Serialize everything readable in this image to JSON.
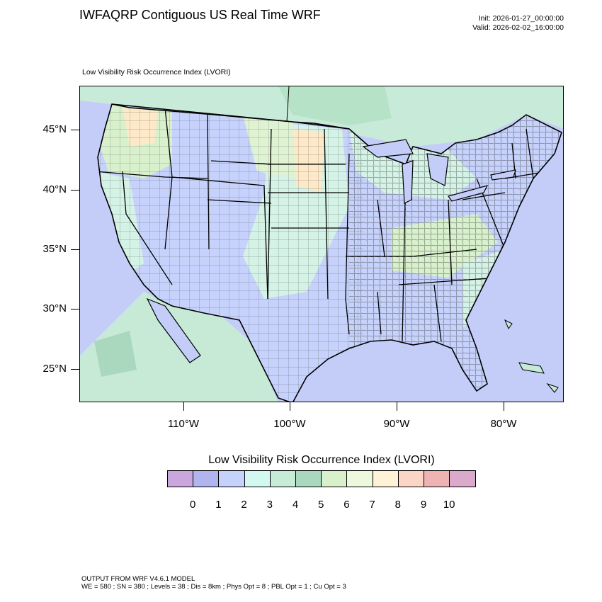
{
  "header": {
    "title": "IWFAQRP Contiguous US Real Time WRF",
    "init": "Init: 2026-01-27_00:00:00",
    "valid": "Valid: 2026-02-02_16:00:00"
  },
  "map": {
    "subtitle": "Low Visibility Risk Occurrence Index   (LVORI)",
    "lat_labels": [
      "45°N",
      "40°N",
      "35°N",
      "30°N",
      "25°N"
    ],
    "lon_labels": [
      "110°W",
      "100°W",
      "90°W",
      "80°W"
    ],
    "ocean_color": "#c4cdf8",
    "colors": {
      "low_blue": "#c6d2fb",
      "mid_teal": "#d4f2e5",
      "green": "#b8e6cf",
      "light_green": "#dff3d2",
      "warm": "#fde9c8",
      "red": "#f2b2ad"
    }
  },
  "colorbar": {
    "title": "Low Visibility Risk Occurrence Index  (LVORI)",
    "labels": [
      "0",
      "1",
      "2",
      "3",
      "4",
      "5",
      "6",
      "7",
      "8",
      "9",
      "10"
    ],
    "colors": [
      "#c9a6dc",
      "#b0b5ef",
      "#c5d3fc",
      "#d3f8f1",
      "#c6ecd8",
      "#a9d8be",
      "#d8f0cc",
      "#eef8dc",
      "#fff2d7",
      "#fbd6c7",
      "#eeb4b3",
      "#dba9cb"
    ]
  },
  "footer": {
    "line1": "OUTPUT FROM WRF V4.6.1 MODEL",
    "line2": "WE = 580 ; SN = 380 ; Levels = 38 ; Dis = 8km ; Phys Opt = 8 ; PBL Opt = 1 ; Cu Opt = 3"
  }
}
